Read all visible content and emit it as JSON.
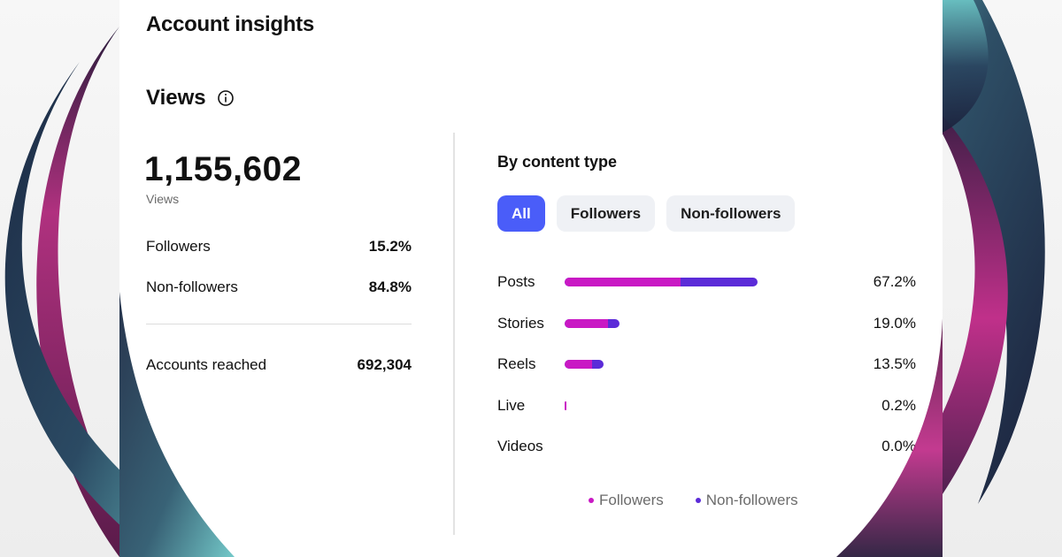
{
  "page_title": "Account insights",
  "views_section": {
    "title": "Views",
    "info_icon": "info-circle-icon",
    "total": "1,155,602",
    "total_caption": "Views",
    "followers_label": "Followers",
    "followers_value": "15.2%",
    "non_followers_label": "Non-followers",
    "non_followers_value": "84.8%",
    "accounts_reached_label": "Accounts reached",
    "accounts_reached_value": "692,304"
  },
  "content_type": {
    "title": "By content type",
    "filters": [
      {
        "label": "All",
        "active": true
      },
      {
        "label": "Followers",
        "active": false
      },
      {
        "label": "Non-followers",
        "active": false
      }
    ],
    "rows": [
      {
        "label": "Posts",
        "percent": "67.2%",
        "share": 0.672,
        "followers_fraction": 0.6
      },
      {
        "label": "Stories",
        "percent": "19.0%",
        "share": 0.19,
        "followers_fraction": 0.8
      },
      {
        "label": "Reels",
        "percent": "13.5%",
        "share": 0.135,
        "followers_fraction": 0.7
      },
      {
        "label": "Live",
        "percent": "0.2%",
        "share": 0.002,
        "followers_fraction": 1.0
      },
      {
        "label": "Videos",
        "percent": "0.0%",
        "share": 0.0,
        "followers_fraction": 0.0
      }
    ],
    "legend": {
      "followers": "Followers",
      "non_followers": "Non-followers"
    }
  },
  "colors": {
    "followers": "#c919c4",
    "non_followers": "#5b2bd8",
    "active_chip": "#4a5df9"
  }
}
